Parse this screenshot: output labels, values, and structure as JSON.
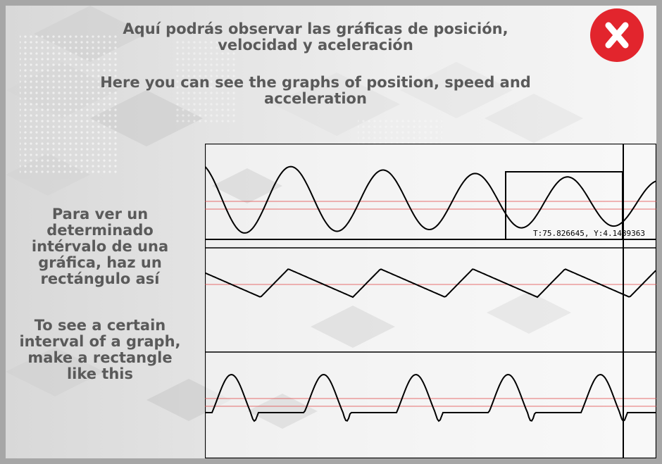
{
  "instructions": {
    "title_es_line1": "Aquí podrás observar las gráficas de posición,",
    "title_es_line2": "velocidad y aceleración",
    "title_en_line1": "Here you can see the graphs of position, speed and",
    "title_en_line2": "acceleration",
    "side_es": [
      "Para ver un",
      "determinado",
      "intérvalo de una",
      "gráfica, haz un",
      "rectángulo así"
    ],
    "side_en": [
      "To see a certain",
      "interval of a graph,",
      "make a rectangle",
      "like this"
    ]
  },
  "close_button": {
    "icon": "close-icon",
    "color": "#e2252d"
  },
  "graph_panel": {
    "graphs": [
      "position",
      "speed",
      "acceleration"
    ],
    "cursor_readout": "T:75.826645, Y:4.1489363",
    "curve_color": "#000000",
    "reference_line_color": "#e04040"
  }
}
